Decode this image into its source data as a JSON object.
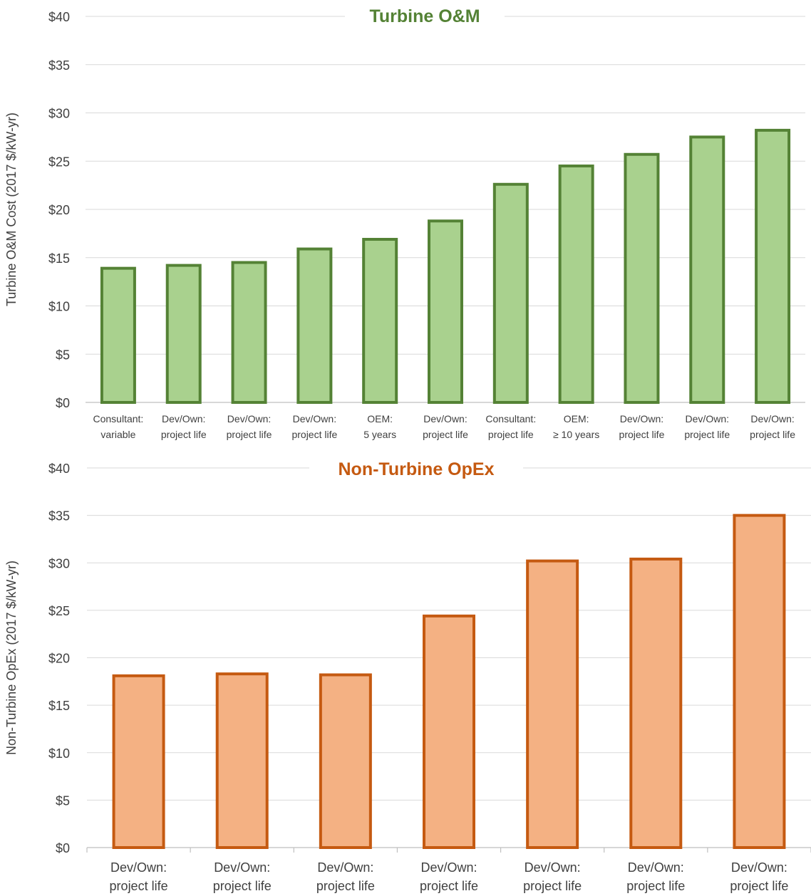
{
  "chart_data": [
    {
      "type": "bar",
      "title": "Turbine O&M",
      "ylabel": "Turbine O&M Cost (2017 $/kW-yr)",
      "xlabel": "",
      "ylim": [
        0,
        40
      ],
      "yticks": [
        "$0",
        "$5",
        "$10",
        "$15",
        "$20",
        "$25",
        "$30",
        "$35",
        "$40"
      ],
      "grid": true,
      "colors": {
        "fill": "#a9d18e",
        "stroke": "#548235",
        "title": "#548235"
      },
      "categories": [
        [
          "Consultant:",
          "variable"
        ],
        [
          "Dev/Own:",
          "project life"
        ],
        [
          "Dev/Own:",
          "project life"
        ],
        [
          "Dev/Own:",
          "project life"
        ],
        [
          "OEM:",
          "5 years"
        ],
        [
          "Dev/Own:",
          "project life"
        ],
        [
          "Consultant:",
          "project life"
        ],
        [
          "OEM:",
          "≥ 10 years"
        ],
        [
          "Dev/Own:",
          "project life"
        ],
        [
          "Dev/Own:",
          "project life"
        ],
        [
          "Dev/Own:",
          "project life"
        ]
      ],
      "values": [
        13.9,
        14.2,
        14.5,
        15.9,
        16.9,
        18.8,
        22.6,
        24.5,
        25.7,
        27.5,
        28.2
      ]
    },
    {
      "type": "bar",
      "title": "Non-Turbine OpEx",
      "ylabel": "Non-Turbine OpEx (2017 $/kW-yr)",
      "xlabel": "",
      "ylim": [
        0,
        40
      ],
      "yticks": [
        "$0",
        "$5",
        "$10",
        "$15",
        "$20",
        "$25",
        "$30",
        "$35",
        "$40"
      ],
      "grid": true,
      "colors": {
        "fill": "#f4b183",
        "stroke": "#c55a11",
        "title": "#c55a11"
      },
      "categories": [
        [
          "Dev/Own:",
          "project life"
        ],
        [
          "Dev/Own:",
          "project life"
        ],
        [
          "Dev/Own:",
          "project life"
        ],
        [
          "Dev/Own:",
          "project life"
        ],
        [
          "Dev/Own:",
          "project life"
        ],
        [
          "Dev/Own:",
          "project life"
        ],
        [
          "Dev/Own:",
          "project life"
        ]
      ],
      "values": [
        18.1,
        18.3,
        18.2,
        24.4,
        30.2,
        30.4,
        35.0
      ]
    }
  ]
}
